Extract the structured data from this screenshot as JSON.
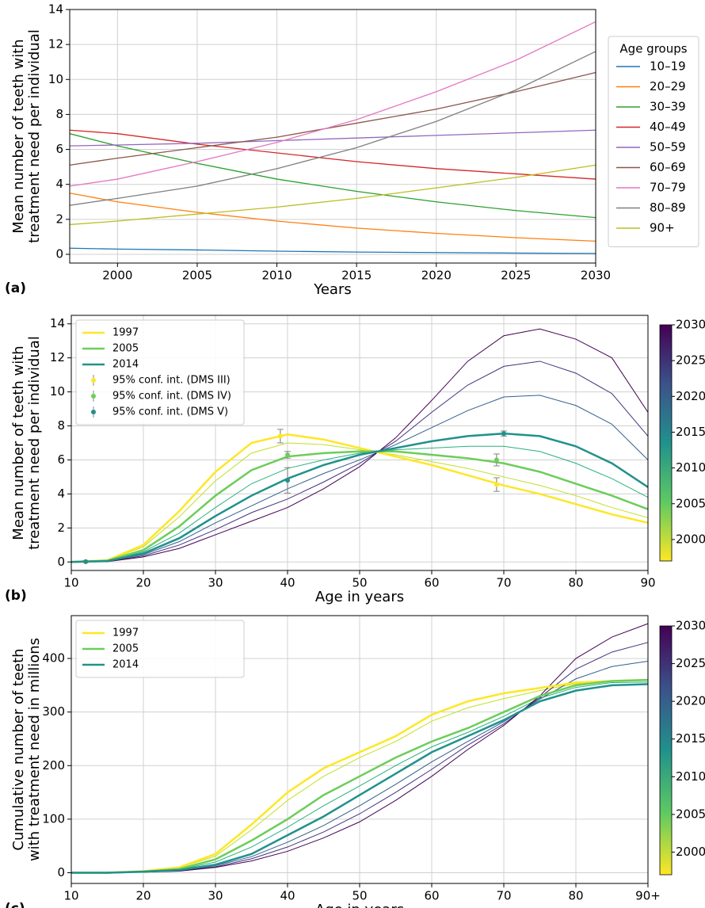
{
  "chart_data": [
    {
      "type": "line",
      "panel_label": "(a)",
      "xlabel": "Years",
      "ylabel": [
        "Mean number of teeth with",
        "treatment need per individual"
      ],
      "x": [
        1997,
        2000,
        2005,
        2010,
        2015,
        2020,
        2025,
        2030
      ],
      "xlim": [
        1997,
        2030
      ],
      "xticks": [
        2000,
        2005,
        2010,
        2015,
        2020,
        2025,
        2030
      ],
      "ylim": [
        -0.5,
        14
      ],
      "yticks": [
        0,
        2,
        4,
        6,
        8,
        10,
        12,
        14
      ],
      "grid": true,
      "legend": "outside right",
      "legend_title": "Age groups",
      "series": [
        {
          "name": "10–19",
          "color": "#1f77b4",
          "values": [
            0.35,
            0.3,
            0.25,
            0.18,
            0.13,
            0.1,
            0.07,
            0.05
          ]
        },
        {
          "name": "20–29",
          "color": "#ff7f0e",
          "values": [
            3.5,
            3.0,
            2.4,
            1.9,
            1.5,
            1.2,
            0.95,
            0.75
          ]
        },
        {
          "name": "30–39",
          "color": "#2ca02c",
          "values": [
            6.9,
            6.2,
            5.2,
            4.3,
            3.6,
            3.0,
            2.5,
            2.1
          ]
        },
        {
          "name": "40–49",
          "color": "#d62728",
          "values": [
            7.1,
            6.9,
            6.3,
            5.8,
            5.3,
            4.9,
            4.6,
            4.3
          ]
        },
        {
          "name": "50–59",
          "color": "#9467bd",
          "values": [
            6.2,
            6.25,
            6.35,
            6.5,
            6.65,
            6.8,
            6.95,
            7.1
          ]
        },
        {
          "name": "60–69",
          "color": "#8c564b",
          "values": [
            5.1,
            5.5,
            6.1,
            6.7,
            7.5,
            8.3,
            9.3,
            10.4
          ]
        },
        {
          "name": "70–79",
          "color": "#e377c2",
          "values": [
            3.9,
            4.3,
            5.3,
            6.4,
            7.7,
            9.3,
            11.1,
            13.3
          ]
        },
        {
          "name": "80–89",
          "color": "#7f7f7f",
          "values": [
            2.8,
            3.2,
            3.9,
            4.9,
            6.1,
            7.6,
            9.4,
            11.6
          ]
        },
        {
          "name": "90+",
          "color": "#bcbd22",
          "values": [
            1.7,
            1.9,
            2.3,
            2.7,
            3.2,
            3.8,
            4.4,
            5.1
          ]
        }
      ]
    },
    {
      "type": "line",
      "panel_label": "(b)",
      "xlabel": "Age in years",
      "ylabel": [
        "Mean number of teeth with",
        "treatment need per individual"
      ],
      "x": [
        10,
        15,
        20,
        25,
        30,
        35,
        40,
        45,
        50,
        55,
        60,
        65,
        70,
        75,
        80,
        85,
        90
      ],
      "xlim": [
        10,
        90
      ],
      "xticks": [
        10,
        20,
        30,
        40,
        50,
        60,
        70,
        80,
        90
      ],
      "ylim": [
        -0.5,
        14.5
      ],
      "yticks": [
        0,
        2,
        4,
        6,
        8,
        10,
        12,
        14
      ],
      "grid": true,
      "legend": "upper left",
      "series": [
        {
          "name": "1997",
          "color": "#fde725",
          "values": [
            0,
            0.1,
            1.0,
            3.0,
            5.3,
            7.0,
            7.5,
            7.2,
            6.7,
            6.2,
            5.7,
            5.1,
            4.5,
            4.0,
            3.4,
            2.8,
            2.3
          ]
        },
        {
          "name": "2005",
          "color": "#6ccd5a",
          "values": [
            0,
            0.08,
            0.7,
            2.1,
            3.9,
            5.4,
            6.2,
            6.4,
            6.5,
            6.5,
            6.3,
            6.1,
            5.8,
            5.3,
            4.6,
            3.9,
            3.1
          ]
        },
        {
          "name": "2014",
          "color": "#21918c",
          "values": [
            0,
            0.05,
            0.5,
            1.4,
            2.7,
            3.9,
            4.9,
            5.7,
            6.3,
            6.7,
            7.1,
            7.4,
            7.55,
            7.4,
            6.8,
            5.8,
            4.4
          ]
        }
      ],
      "other_series": [
        {
          "color": "#c2df23",
          "values": [
            0,
            0.09,
            0.89,
            2.66,
            4.77,
            6.4,
            7.0,
            6.9,
            6.6,
            6.3,
            5.9,
            5.5,
            5.0,
            4.5,
            3.9,
            3.2,
            2.6
          ]
        },
        {
          "color": "#2ab07f",
          "values": [
            0,
            0.06,
            0.6,
            1.7,
            3.2,
            4.6,
            5.5,
            6.0,
            6.4,
            6.6,
            6.7,
            6.8,
            6.8,
            6.5,
            5.8,
            4.9,
            3.8
          ]
        },
        {
          "color": "#355f8d",
          "values": [
            0,
            0.04,
            0.43,
            1.2,
            2.3,
            3.3,
            4.3,
            5.2,
            6.0,
            6.9,
            7.9,
            8.9,
            9.7,
            9.8,
            9.2,
            8.1,
            6.0
          ]
        },
        {
          "color": "#46327e",
          "values": [
            0,
            0.03,
            0.36,
            1.0,
            1.9,
            2.9,
            3.7,
            4.7,
            5.8,
            7.1,
            8.8,
            10.4,
            11.5,
            11.8,
            11.1,
            9.9,
            7.4
          ]
        },
        {
          "color": "#440154",
          "values": [
            0,
            0.02,
            0.3,
            0.8,
            1.6,
            2.4,
            3.2,
            4.3,
            5.6,
            7.3,
            9.5,
            11.8,
            13.3,
            13.7,
            13.1,
            12.0,
            8.8
          ]
        }
      ],
      "errorbars": [
        {
          "name": "95% conf. int. (DMS III)",
          "color": "#fde725",
          "x": [
            12,
            39,
            69
          ],
          "values": [
            0.02,
            7.4,
            4.55
          ],
          "errors": [
            0.05,
            0.4,
            0.4
          ]
        },
        {
          "name": "95% conf. int. (DMS IV)",
          "color": "#6ccd5a",
          "x": [
            12,
            40,
            69
          ],
          "values": [
            0.02,
            6.3,
            6.0
          ],
          "errors": [
            0.05,
            0.2,
            0.35
          ]
        },
        {
          "name": "95% conf. int. (DMS V)",
          "color": "#21918c",
          "x": [
            12,
            40,
            70
          ],
          "values": [
            0.02,
            4.8,
            7.55
          ],
          "errors": [
            0.05,
            0.75,
            0.15
          ]
        }
      ],
      "colorbar": {
        "lim": [
          1997,
          2030
        ],
        "ticks": [
          2000,
          2005,
          2010,
          2015,
          2020,
          2025,
          2030
        ],
        "colors": [
          "#fde725",
          "#5ec962",
          "#21918c",
          "#3b528b",
          "#440154"
        ]
      }
    },
    {
      "type": "line",
      "panel_label": "(c)",
      "xlabel": "Age in years",
      "ylabel": [
        "Cumulative number of teeth",
        "with treatment need in millions"
      ],
      "x": [
        10,
        15,
        20,
        25,
        30,
        35,
        40,
        45,
        50,
        55,
        60,
        65,
        70,
        75,
        80,
        85,
        90
      ],
      "xlim": [
        10,
        90
      ],
      "xticks": [
        10,
        20,
        30,
        40,
        50,
        60,
        70,
        80,
        {
          "value": 90,
          "label": "90+"
        }
      ],
      "ylim": [
        -20,
        480
      ],
      "yticks": [
        0,
        100,
        200,
        300,
        400
      ],
      "grid": true,
      "legend": "upper left",
      "series": [
        {
          "name": "1997",
          "color": "#fde725",
          "values": [
            0,
            0,
            3,
            10,
            35,
            90,
            150,
            195,
            225,
            255,
            295,
            320,
            335,
            345,
            355,
            358,
            360
          ]
        },
        {
          "name": "2005",
          "color": "#6ccd5a",
          "values": [
            0,
            0,
            2,
            7,
            25,
            60,
            100,
            145,
            180,
            215,
            245,
            270,
            300,
            330,
            350,
            358,
            360
          ]
        },
        {
          "name": "2014",
          "color": "#21918c",
          "values": [
            0,
            0,
            2,
            5,
            15,
            35,
            70,
            105,
            145,
            185,
            225,
            255,
            285,
            320,
            340,
            350,
            352
          ]
        }
      ],
      "other_series": [
        {
          "color": "#c2df23",
          "values": [
            0,
            0,
            3,
            9,
            31,
            80,
            135,
            180,
            215,
            245,
            283,
            308,
            325,
            340,
            353,
            358,
            360
          ]
        },
        {
          "color": "#2ab07f",
          "values": [
            0,
            0,
            2,
            6,
            20,
            48,
            85,
            125,
            162,
            200,
            235,
            262,
            292,
            326,
            346,
            355,
            356
          ]
        },
        {
          "color": "#355f8d",
          "values": [
            0,
            0,
            1.5,
            4,
            13,
            30,
            57,
            88,
            125,
            165,
            207,
            245,
            282,
            324,
            362,
            385,
            395
          ]
        },
        {
          "color": "#46327e",
          "values": [
            0,
            0,
            1.2,
            3.5,
            11,
            26,
            48,
            76,
            110,
            150,
            193,
            238,
            278,
            327,
            380,
            412,
            430
          ]
        },
        {
          "color": "#440154",
          "values": [
            0,
            0,
            1,
            3,
            10,
            22,
            40,
            65,
            95,
            135,
            180,
            230,
            275,
            330,
            400,
            440,
            465
          ]
        }
      ],
      "colorbar": {
        "lim": [
          1997,
          2030
        ],
        "ticks": [
          2000,
          2005,
          2010,
          2015,
          2020,
          2025,
          2030
        ],
        "colors": [
          "#fde725",
          "#5ec962",
          "#21918c",
          "#3b528b",
          "#440154"
        ]
      }
    }
  ]
}
